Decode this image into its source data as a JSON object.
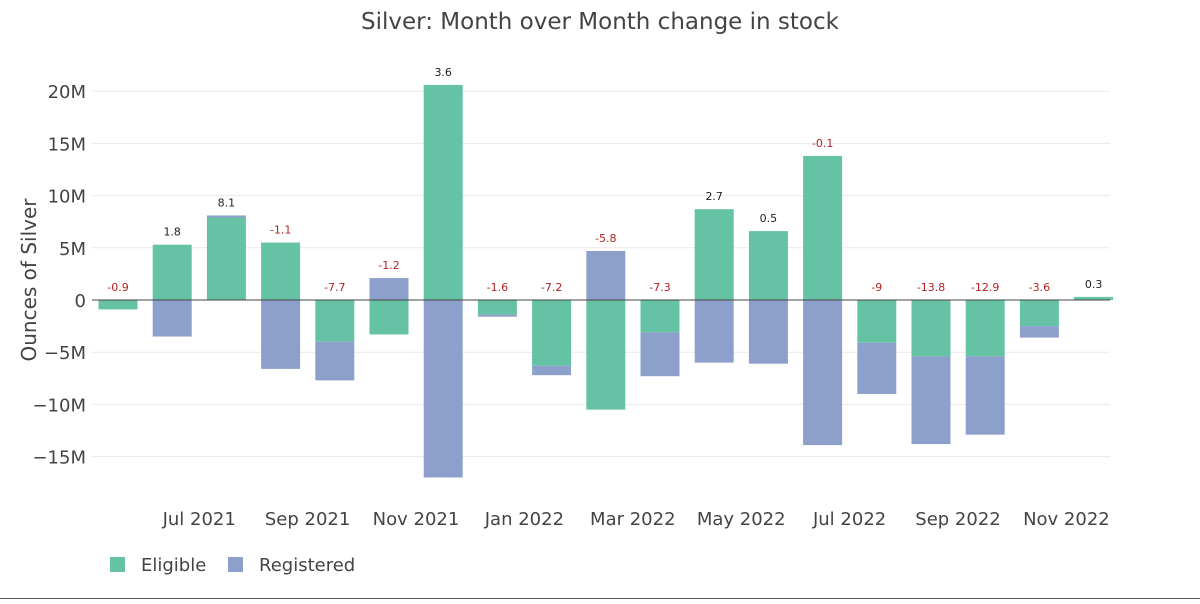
{
  "chart_data": {
    "type": "bar",
    "barmode": "relative",
    "title": "Silver: Month over Month change in stock",
    "ylabel": "Ounces of Silver",
    "xlabel": "",
    "ylim": [
      -18000000,
      22000000
    ],
    "y_ticks": [
      {
        "value": 20000000,
        "label": "20M"
      },
      {
        "value": 15000000,
        "label": "15M"
      },
      {
        "value": 10000000,
        "label": "10M"
      },
      {
        "value": 5000000,
        "label": "5M"
      },
      {
        "value": 0,
        "label": "0"
      },
      {
        "value": -5000000,
        "label": "−5M"
      },
      {
        "value": -10000000,
        "label": "−10M"
      },
      {
        "value": -15000000,
        "label": "−15M"
      }
    ],
    "x_ticks": [
      {
        "index": 1,
        "label": "Jul 2021"
      },
      {
        "index": 3,
        "label": "Sep 2021"
      },
      {
        "index": 5,
        "label": "Nov 2021"
      },
      {
        "index": 7,
        "label": "Jan 2022"
      },
      {
        "index": 9,
        "label": "Mar 2022"
      },
      {
        "index": 11,
        "label": "May 2022"
      },
      {
        "index": 13,
        "label": "Jul 2022"
      },
      {
        "index": 15,
        "label": "Sep 2022"
      },
      {
        "index": 17,
        "label": "Nov 2022"
      }
    ],
    "grid": true,
    "legend": "bottom-left",
    "series": [
      {
        "name": "Eligible",
        "color": "#66c2a5",
        "values": [
          -0.9,
          5.3,
          7.9,
          5.5,
          -4.0,
          -3.3,
          20.6,
          -1.4,
          -6.3,
          -10.5,
          -3.1,
          8.7,
          6.6,
          13.8,
          -4.1,
          -5.4,
          -5.4,
          -2.5,
          0.3
        ]
      },
      {
        "name": "Registered",
        "color": "#8da0cb",
        "values": [
          0,
          -3.5,
          0.2,
          -6.6,
          -3.7,
          2.1,
          -17.0,
          -0.2,
          -0.9,
          4.7,
          -4.2,
          -6.0,
          -6.1,
          -13.9,
          -4.9,
          -8.4,
          -7.5,
          -1.1,
          0
        ]
      }
    ],
    "totals": [
      "-0.9",
      "1.8",
      "8.1",
      "-1.1",
      "-7.7",
      "-1.2",
      "3.6",
      "-1.6",
      "-7.2",
      "-5.8",
      "-7.3",
      "2.7",
      "0.5",
      "-0.1",
      "-9",
      "-13.8",
      "-12.9",
      "-3.6",
      "0.3"
    ],
    "total_colors": {
      "positive": "#222222",
      "negative": "#b22222"
    }
  }
}
